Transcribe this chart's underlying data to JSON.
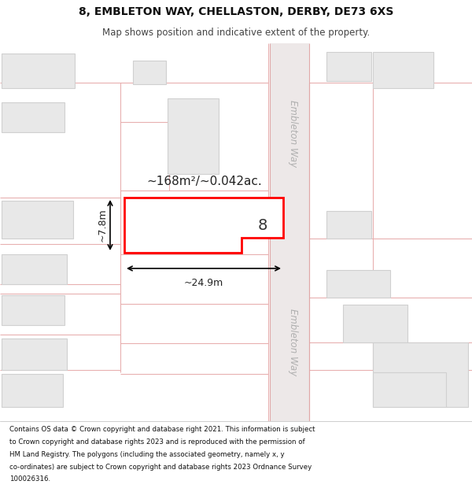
{
  "title": "8, EMBLETON WAY, CHELLASTON, DERBY, DE73 6XS",
  "subtitle": "Map shows position and indicative extent of the property.",
  "footer": "Contains OS data © Crown copyright and database right 2021. This information is subject to Crown copyright and database rights 2023 and is reproduced with the permission of HM Land Registry. The polygons (including the associated geometry, namely x, y co-ordinates) are subject to Crown copyright and database rights 2023 Ordnance Survey 100026316.",
  "bg_color": "#ffffff",
  "map_bg": "#faf8f8",
  "road_fill": "#ede8e8",
  "road_border": "#e0a8a8",
  "plot_line": "#e8b0b0",
  "bfill": "#e8e8e8",
  "bedge": "#d0d0d0",
  "highlight_color": "#ff0000",
  "area_text": "~168m²/~0.042ac.",
  "width_text": "~24.9m",
  "height_text": "~7.8m",
  "number_text": "8",
  "street_label": "Embleton Way",
  "title_fontsize": 10,
  "subtitle_fontsize": 8.5,
  "footer_fontsize": 6.2
}
